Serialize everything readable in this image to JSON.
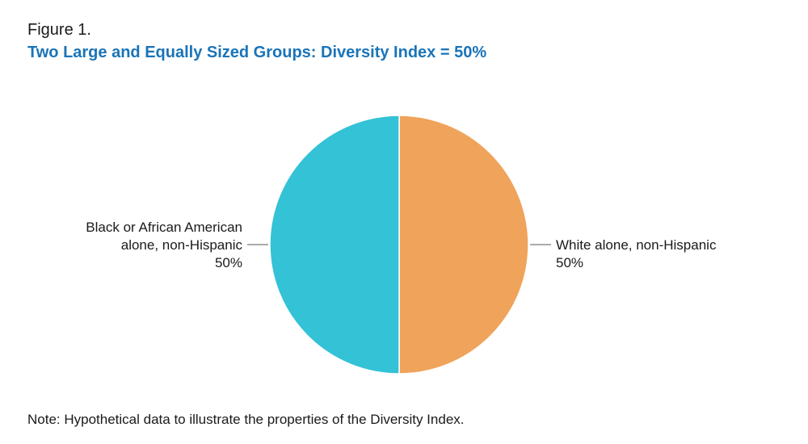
{
  "figure": {
    "label": "Figure 1.",
    "title": "Two Large and Equally Sized Groups: Diversity Index = 50%",
    "note": "Note: Hypothetical data to illustrate the properties of the Diversity Index."
  },
  "colors": {
    "title": "#1a74b8",
    "white_slice": "#f0a35a",
    "black_slice": "#33c2d6",
    "leader_line": "#555555"
  },
  "chart_data": {
    "type": "pie",
    "slices": [
      {
        "key": "white",
        "label_lines": [
          "White alone, non-Hispanic"
        ],
        "value_label": "50%",
        "value": 50,
        "color": "#f0a35a"
      },
      {
        "key": "black",
        "label_lines": [
          "Black or African American",
          "alone, non-Hispanic"
        ],
        "value_label": "50%",
        "value": 50,
        "color": "#33c2d6"
      }
    ],
    "title": "Two Large and Equally Sized Groups: Diversity Index = 50%",
    "legend": "none"
  }
}
